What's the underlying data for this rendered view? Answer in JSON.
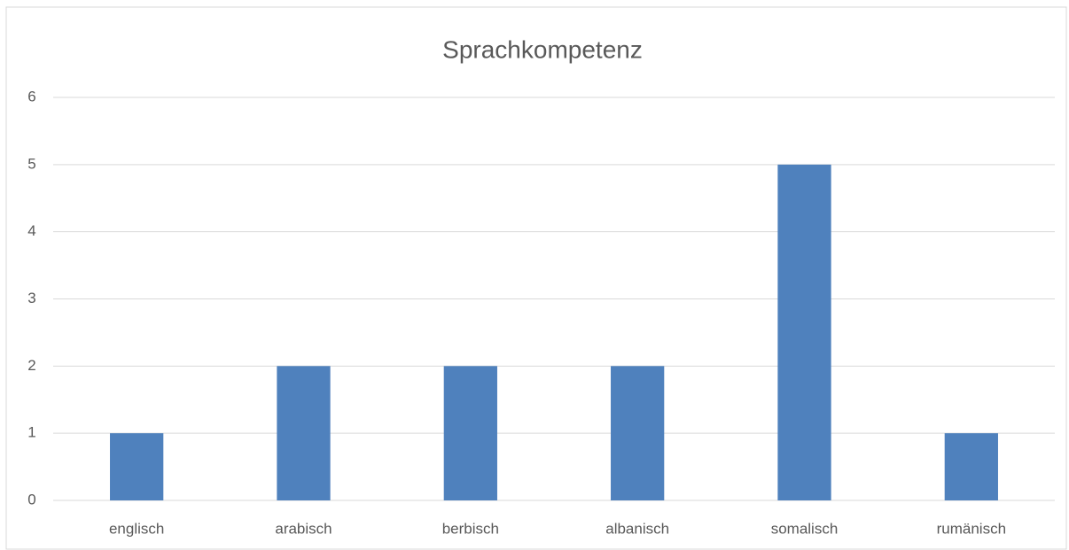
{
  "chart_data": {
    "type": "bar",
    "title": "Sprachkompetenz",
    "categories": [
      "englisch",
      "arabisch",
      "berbisch",
      "albanisch",
      "somalisch",
      "rumänisch"
    ],
    "values": [
      1,
      2,
      2,
      2,
      5,
      1
    ],
    "color": "#4f81bd",
    "ylim": [
      0,
      6
    ],
    "yticks": [
      0,
      1,
      2,
      3,
      4,
      5,
      6
    ],
    "grid": true
  }
}
